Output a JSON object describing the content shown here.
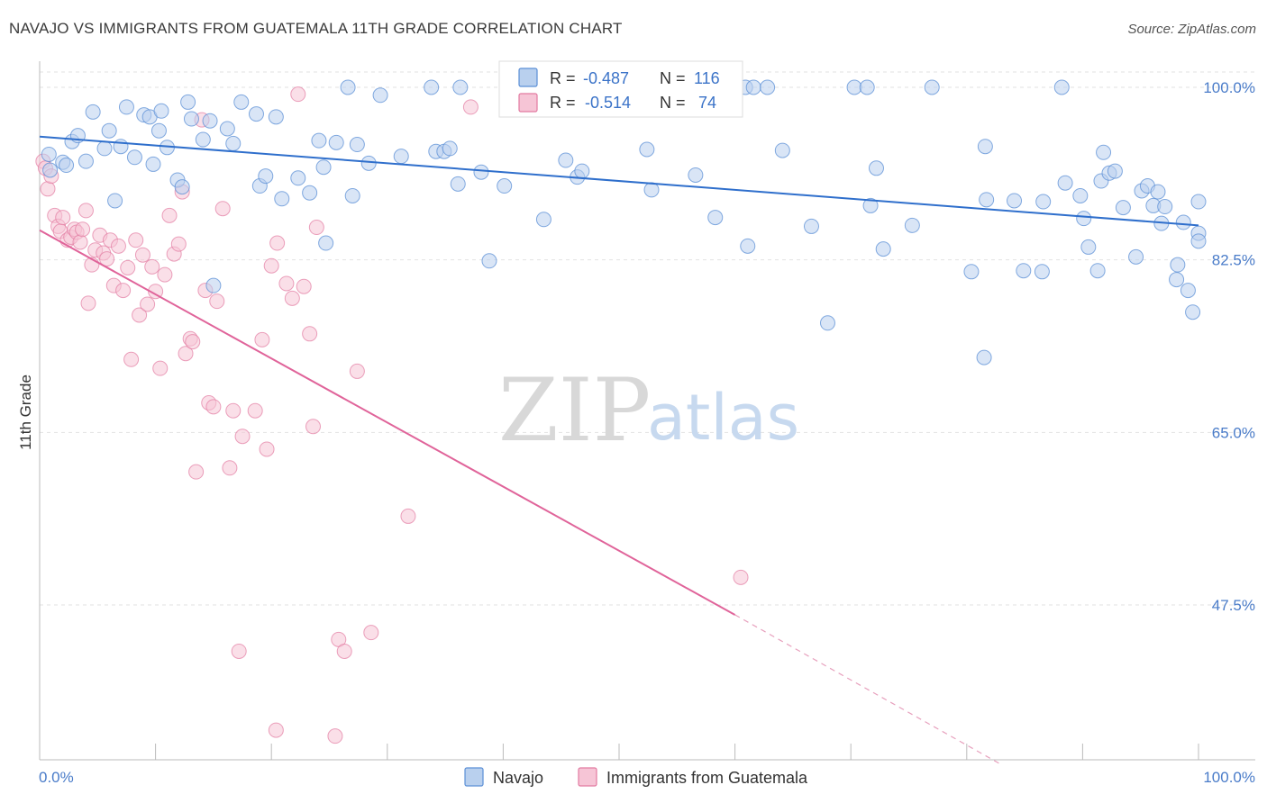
{
  "title": "NAVAJO VS IMMIGRANTS FROM GUATEMALA 11TH GRADE CORRELATION CHART",
  "source": "Source: ZipAtlas.com",
  "watermark": {
    "zip": "ZIP",
    "atlas": "atlas"
  },
  "colors": {
    "navajo": "#5b8fd6",
    "navajo_fill": "#b9d0ee",
    "guatemala": "#e27aa1",
    "guatemala_fill": "#f6c5d6",
    "axis_text": "#4a7cc9"
  },
  "legend": {
    "r_label": "R =",
    "n_label": "N =",
    "navajo": {
      "r": "-0.487",
      "n": "116"
    },
    "guatemala": {
      "r": "-0.514",
      "n": "74"
    }
  },
  "bottom_legend": {
    "navajo": "Navajo",
    "guatemala": "Immigrants from Guatemala"
  },
  "chart_data": {
    "type": "scatter",
    "title": "NAVAJO VS IMMIGRANTS FROM GUATEMALA 11TH GRADE CORRELATION CHART",
    "xlabel": "",
    "ylabel": "11th Grade",
    "xlim": [
      0,
      100
    ],
    "ylim": [
      30,
      100
    ],
    "x_tick_labels": [
      "0.0%",
      "100.0%"
    ],
    "y_ticks": [
      47.5,
      65.0,
      82.5,
      100.0
    ],
    "y_tick_labels": [
      "47.5%",
      "65.0%",
      "82.5%",
      "100.0%"
    ],
    "grid": "horizontal dashed",
    "legend_position": "top-center",
    "series": [
      {
        "name": "Navajo",
        "trend": {
          "x": [
            0,
            100
          ],
          "y": [
            95.0,
            86.0
          ]
        },
        "points": [
          [
            0.8,
            93.2
          ],
          [
            0.9,
            91.6
          ],
          [
            2.0,
            92.4
          ],
          [
            2.3,
            92.1
          ],
          [
            2.8,
            94.5
          ],
          [
            3.3,
            95.1
          ],
          [
            4.0,
            92.5
          ],
          [
            4.6,
            97.5
          ],
          [
            5.6,
            93.8
          ],
          [
            6.0,
            95.6
          ],
          [
            6.5,
            88.5
          ],
          [
            7.0,
            94.0
          ],
          [
            7.5,
            98.0
          ],
          [
            8.2,
            92.9
          ],
          [
            9.0,
            97.2
          ],
          [
            9.5,
            97.0
          ],
          [
            9.8,
            92.2
          ],
          [
            10.3,
            95.6
          ],
          [
            10.5,
            97.6
          ],
          [
            11.0,
            93.9
          ],
          [
            11.9,
            90.6
          ],
          [
            12.3,
            89.9
          ],
          [
            12.8,
            98.5
          ],
          [
            13.1,
            96.8
          ],
          [
            14.1,
            94.7
          ],
          [
            14.7,
            96.6
          ],
          [
            15.0,
            79.9
          ],
          [
            16.2,
            95.8
          ],
          [
            16.7,
            94.3
          ],
          [
            17.4,
            98.5
          ],
          [
            18.7,
            97.3
          ],
          [
            19.0,
            90.0
          ],
          [
            19.5,
            91.0
          ],
          [
            20.4,
            97.0
          ],
          [
            20.9,
            88.7
          ],
          [
            22.3,
            90.8
          ],
          [
            23.3,
            89.3
          ],
          [
            24.1,
            94.6
          ],
          [
            24.5,
            91.9
          ],
          [
            24.7,
            84.2
          ],
          [
            25.6,
            94.4
          ],
          [
            26.6,
            100.0
          ],
          [
            27.0,
            89.0
          ],
          [
            27.4,
            94.2
          ],
          [
            28.4,
            92.3
          ],
          [
            29.4,
            99.2
          ],
          [
            31.2,
            93.0
          ],
          [
            33.8,
            100.0
          ],
          [
            34.2,
            93.5
          ],
          [
            34.9,
            93.5
          ],
          [
            35.4,
            93.8
          ],
          [
            36.1,
            90.2
          ],
          [
            36.3,
            100.0
          ],
          [
            38.1,
            91.4
          ],
          [
            38.8,
            82.4
          ],
          [
            40.1,
            90.0
          ],
          [
            43.5,
            86.6
          ],
          [
            45.4,
            92.6
          ],
          [
            46.4,
            90.9
          ],
          [
            46.8,
            91.5
          ],
          [
            52.4,
            93.7
          ],
          [
            52.8,
            89.6
          ],
          [
            53.5,
            100.0
          ],
          [
            56.6,
            91.1
          ],
          [
            58.3,
            86.8
          ],
          [
            60.9,
            100.0
          ],
          [
            61.1,
            83.9
          ],
          [
            61.6,
            100.0
          ],
          [
            62.8,
            100.0
          ],
          [
            64.1,
            93.6
          ],
          [
            66.6,
            85.9
          ],
          [
            68.0,
            76.1
          ],
          [
            70.3,
            100.0
          ],
          [
            71.4,
            100.0
          ],
          [
            71.7,
            88.0
          ],
          [
            72.2,
            91.8
          ],
          [
            72.8,
            83.6
          ],
          [
            75.3,
            86.0
          ],
          [
            77.0,
            100.0
          ],
          [
            80.4,
            81.3
          ],
          [
            81.5,
            72.6
          ],
          [
            81.6,
            94.0
          ],
          [
            81.7,
            88.6
          ],
          [
            84.1,
            88.5
          ],
          [
            84.9,
            81.4
          ],
          [
            86.5,
            81.3
          ],
          [
            86.6,
            88.4
          ],
          [
            88.2,
            100.0
          ],
          [
            88.5,
            90.3
          ],
          [
            89.8,
            89.0
          ],
          [
            90.1,
            86.7
          ],
          [
            90.5,
            83.8
          ],
          [
            91.3,
            81.4
          ],
          [
            91.6,
            90.5
          ],
          [
            91.8,
            93.4
          ],
          [
            92.3,
            91.3
          ],
          [
            92.8,
            91.5
          ],
          [
            93.5,
            87.8
          ],
          [
            94.6,
            82.8
          ],
          [
            95.1,
            89.5
          ],
          [
            95.6,
            90.0
          ],
          [
            96.1,
            88.0
          ],
          [
            96.5,
            89.4
          ],
          [
            96.8,
            86.2
          ],
          [
            97.1,
            87.9
          ],
          [
            98.1,
            80.5
          ],
          [
            98.2,
            82.0
          ],
          [
            98.7,
            86.3
          ],
          [
            99.1,
            79.4
          ],
          [
            99.5,
            77.2
          ],
          [
            100.0,
            85.2
          ],
          [
            100.0,
            84.4
          ],
          [
            100.0,
            88.4
          ]
        ]
      },
      {
        "name": "Immigrants from Guatemala",
        "trend": {
          "x": [
            0,
            60
          ],
          "y": [
            85.5,
            46.5
          ]
        },
        "trend_dashed": {
          "x": [
            60,
            83
          ],
          "y": [
            46.5,
            31.3
          ]
        },
        "points": [
          [
            0.3,
            92.5
          ],
          [
            0.5,
            91.8
          ],
          [
            0.7,
            89.7
          ],
          [
            1.0,
            91.0
          ],
          [
            1.3,
            87.0
          ],
          [
            1.6,
            85.9
          ],
          [
            1.8,
            85.4
          ],
          [
            2.0,
            86.8
          ],
          [
            2.4,
            84.5
          ],
          [
            2.7,
            84.8
          ],
          [
            3.0,
            85.6
          ],
          [
            3.2,
            85.3
          ],
          [
            3.5,
            84.3
          ],
          [
            3.7,
            85.6
          ],
          [
            4.0,
            87.5
          ],
          [
            4.2,
            78.1
          ],
          [
            4.5,
            82.0
          ],
          [
            4.8,
            83.5
          ],
          [
            5.2,
            85.0
          ],
          [
            5.5,
            83.2
          ],
          [
            5.8,
            82.6
          ],
          [
            6.1,
            84.5
          ],
          [
            6.4,
            79.9
          ],
          [
            6.8,
            83.9
          ],
          [
            7.2,
            79.4
          ],
          [
            7.6,
            81.7
          ],
          [
            7.9,
            72.4
          ],
          [
            8.3,
            84.5
          ],
          [
            8.6,
            76.9
          ],
          [
            8.9,
            83.0
          ],
          [
            9.3,
            78.0
          ],
          [
            9.7,
            81.8
          ],
          [
            10.0,
            79.3
          ],
          [
            10.4,
            71.5
          ],
          [
            10.8,
            81.0
          ],
          [
            11.2,
            87.0
          ],
          [
            11.6,
            83.1
          ],
          [
            12.0,
            84.1
          ],
          [
            12.3,
            89.4
          ],
          [
            12.6,
            73.0
          ],
          [
            13.0,
            74.5
          ],
          [
            13.2,
            74.2
          ],
          [
            13.5,
            61.0
          ],
          [
            14.0,
            96.7
          ],
          [
            14.3,
            79.4
          ],
          [
            14.6,
            68.0
          ],
          [
            15.0,
            67.6
          ],
          [
            15.3,
            78.3
          ],
          [
            15.8,
            87.7
          ],
          [
            16.4,
            61.4
          ],
          [
            16.7,
            67.2
          ],
          [
            17.2,
            42.8
          ],
          [
            17.5,
            64.6
          ],
          [
            18.6,
            67.2
          ],
          [
            19.2,
            74.4
          ],
          [
            19.6,
            63.3
          ],
          [
            20.0,
            81.9
          ],
          [
            20.5,
            84.2
          ],
          [
            21.3,
            80.1
          ],
          [
            21.8,
            78.6
          ],
          [
            22.3,
            99.3
          ],
          [
            22.8,
            79.8
          ],
          [
            23.3,
            75.0
          ],
          [
            23.6,
            65.6
          ],
          [
            23.9,
            85.8
          ],
          [
            25.5,
            34.2
          ],
          [
            25.8,
            44.0
          ],
          [
            26.3,
            42.8
          ],
          [
            27.4,
            71.2
          ],
          [
            28.6,
            44.7
          ],
          [
            31.8,
            56.5
          ],
          [
            37.2,
            98.0
          ],
          [
            60.5,
            50.3
          ],
          [
            20.4,
            34.8
          ]
        ]
      }
    ]
  }
}
